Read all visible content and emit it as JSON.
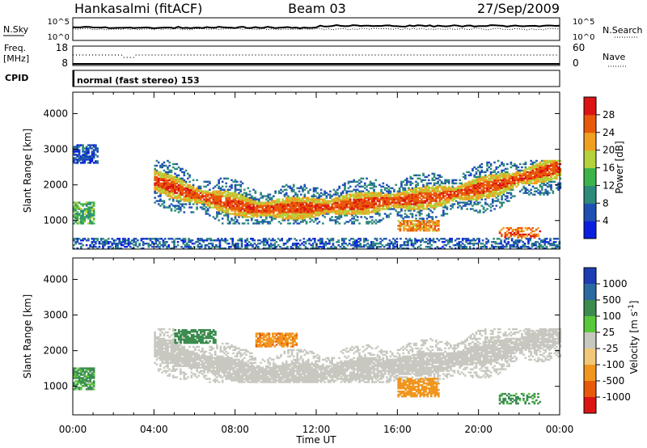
{
  "header": {
    "station": "Hankasalmi (fitACF)",
    "beam": "Beam 03",
    "date": "27/Sep/2009"
  },
  "strip_panels": {
    "nsky_label": "N.Sky",
    "nsky_ticks": [
      "10^5",
      "10^0"
    ],
    "nsearch_label": "N.Search",
    "nsearch_ticks": [
      "10^5",
      "10^0"
    ],
    "freq_label_line1": "Freq.",
    "freq_label_line2": "[MHz]",
    "freq_ticks": [
      "18",
      "8"
    ],
    "nave_label": "Nave",
    "nave_ticks": [
      "60",
      "0"
    ],
    "cpid_label": "CPID",
    "cpid_text": "normal (fast stereo) 153"
  },
  "chart_data": [
    {
      "type": "heatmap",
      "panel": "power",
      "ylabel": "Slant Range [km]",
      "xlabel": "",
      "y_ticks": [
        "1000",
        "2000",
        "3000",
        "4000"
      ],
      "ylim": [
        200,
        4600
      ],
      "x_ticks": [
        "00:00",
        "04:00",
        "08:00",
        "12:00",
        "16:00",
        "20:00",
        "00:00"
      ],
      "xlim_hours": [
        0,
        24
      ],
      "colorbar": {
        "label": "Power [dB]",
        "ticks": [
          "28",
          "24",
          "20",
          "16",
          "12",
          "8",
          "4"
        ],
        "colors": [
          "#0a1ee0",
          "#1e50b4",
          "#2e8a7a",
          "#3cb44a",
          "#b4d23c",
          "#f0a020",
          "#e85a0a",
          "#dc1414"
        ]
      },
      "features": [
        {
          "hours": [
            0.0,
            1.2
          ],
          "range_km": [
            2600,
            3100
          ],
          "power_db": 6
        },
        {
          "hours": [
            0.0,
            1.0
          ],
          "range_km": [
            900,
            1500
          ],
          "power_db": 14
        },
        {
          "hours": [
            4.0,
            24.0
          ],
          "range_km": [
            900,
            2700
          ],
          "power_db": 24
        },
        {
          "hours": [
            16.0,
            18.0
          ],
          "range_km": [
            700,
            1000
          ],
          "power_db": 24
        },
        {
          "hours": [
            21.0,
            23.0
          ],
          "range_km": [
            500,
            800
          ],
          "power_db": 26
        },
        {
          "hours": [
            0.0,
            24.0
          ],
          "range_km": [
            200,
            500
          ],
          "power_db": 8
        }
      ]
    },
    {
      "type": "heatmap",
      "panel": "velocity",
      "ylabel": "Slant Range [km]",
      "xlabel": "Time UT",
      "y_ticks": [
        "1000",
        "2000",
        "3000",
        "4000"
      ],
      "ylim": [
        200,
        4600
      ],
      "x_ticks": [
        "00:00",
        "04:00",
        "08:00",
        "12:00",
        "16:00",
        "20:00",
        "00:00"
      ],
      "xlim_hours": [
        0,
        24
      ],
      "colorbar": {
        "label_main": "Velocity",
        "label_unit": "[m s",
        "label_exp": "-1",
        "label_close": "]",
        "ticks": [
          "1000",
          "500",
          "100",
          "25",
          "-25",
          "-100",
          "-500",
          "-1000"
        ],
        "colors": [
          "#1e3cb4",
          "#2a6aa0",
          "#3c8c50",
          "#5ac83c",
          "#c8c8c0",
          "#f0c878",
          "#f0961e",
          "#e85a0a",
          "#dc1414"
        ]
      },
      "features": [
        {
          "hours": [
            4.0,
            24.0
          ],
          "range_km": [
            1100,
            2600
          ],
          "velocity_ms": 0
        },
        {
          "hours": [
            0.0,
            1.0
          ],
          "range_km": [
            900,
            1500
          ],
          "velocity_ms": 150
        },
        {
          "hours": [
            5.0,
            7.0
          ],
          "range_km": [
            2200,
            2600
          ],
          "velocity_ms": 300
        },
        {
          "hours": [
            9.0,
            11.0
          ],
          "range_km": [
            2100,
            2500
          ],
          "velocity_ms": -400
        },
        {
          "hours": [
            16.0,
            18.0
          ],
          "range_km": [
            700,
            1200
          ],
          "velocity_ms": -300
        },
        {
          "hours": [
            21.0,
            23.0
          ],
          "range_km": [
            500,
            800
          ],
          "velocity_ms": 200
        }
      ]
    }
  ]
}
